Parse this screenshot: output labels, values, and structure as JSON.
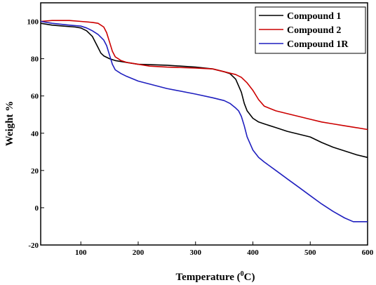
{
  "chart_data": {
    "type": "line",
    "xlabel": "Temperature (",
    "xlabel_sup": "0",
    "xlabel_end": "C)",
    "ylabel": "Weight %",
    "xlim": [
      30,
      600
    ],
    "ylim": [
      -20,
      110
    ],
    "xticks": [
      100,
      200,
      300,
      400,
      500,
      600
    ],
    "xtick_labels": [
      "100",
      "200",
      "300",
      "400",
      "500",
      "600"
    ],
    "yticks": [
      -20,
      0,
      20,
      40,
      60,
      80,
      100
    ],
    "ytick_labels": [
      "-20",
      "0",
      "20",
      "40",
      "60",
      "80",
      "100"
    ],
    "legend_position": "top-right",
    "grid": false,
    "series": [
      {
        "name": "Compound 1",
        "color": "#000000",
        "x": [
          30,
          50,
          70,
          90,
          100,
          110,
          120,
          125,
          130,
          135,
          140,
          150,
          160,
          180,
          200,
          250,
          300,
          330,
          350,
          360,
          370,
          380,
          385,
          390,
          400,
          410,
          420,
          440,
          460,
          480,
          500,
          520,
          540,
          560,
          580,
          600
        ],
        "y": [
          99,
          98,
          97.5,
          97,
          96.5,
          95,
          92,
          89,
          86,
          83,
          81.5,
          80,
          79,
          78,
          77,
          76.5,
          75.5,
          74.5,
          73,
          72,
          69,
          62,
          56,
          52,
          48,
          46,
          45,
          43,
          41,
          39.5,
          38,
          35,
          32.5,
          30.5,
          28.5,
          27
        ]
      },
      {
        "name": "Compound 2",
        "color": "#cc0000",
        "x": [
          30,
          50,
          80,
          100,
          120,
          130,
          140,
          145,
          150,
          155,
          160,
          165,
          170,
          180,
          200,
          220,
          250,
          300,
          330,
          350,
          370,
          380,
          390,
          400,
          410,
          420,
          440,
          460,
          480,
          500,
          520,
          540,
          560,
          580,
          600
        ],
        "y": [
          100,
          100.5,
          100.5,
          100,
          99.5,
          99,
          97,
          94,
          89,
          84,
          81,
          80,
          79,
          78,
          77,
          76,
          75.5,
          75,
          74.5,
          73,
          71.5,
          70,
          67,
          63,
          58,
          54.5,
          52,
          50.5,
          49,
          47.5,
          46,
          45,
          44,
          43,
          42
        ]
      },
      {
        "name": "Compound 1R",
        "color": "#1f1fbf",
        "x": [
          30,
          50,
          80,
          100,
          110,
          120,
          130,
          140,
          145,
          150,
          155,
          160,
          170,
          180,
          200,
          250,
          300,
          330,
          350,
          360,
          370,
          375,
          380,
          385,
          390,
          400,
          410,
          420,
          440,
          460,
          480,
          500,
          520,
          540,
          560,
          575,
          600
        ],
        "y": [
          100,
          99,
          98,
          97.5,
          96.5,
          95,
          93,
          90,
          87,
          82,
          77,
          74,
          72,
          70.5,
          68,
          64,
          61,
          59,
          57.5,
          56,
          53.5,
          52,
          49,
          44,
          38,
          31,
          27,
          24.5,
          20,
          15.5,
          11,
          6.5,
          2,
          -2,
          -5.5,
          -7.5,
          -7.5
        ]
      }
    ]
  }
}
